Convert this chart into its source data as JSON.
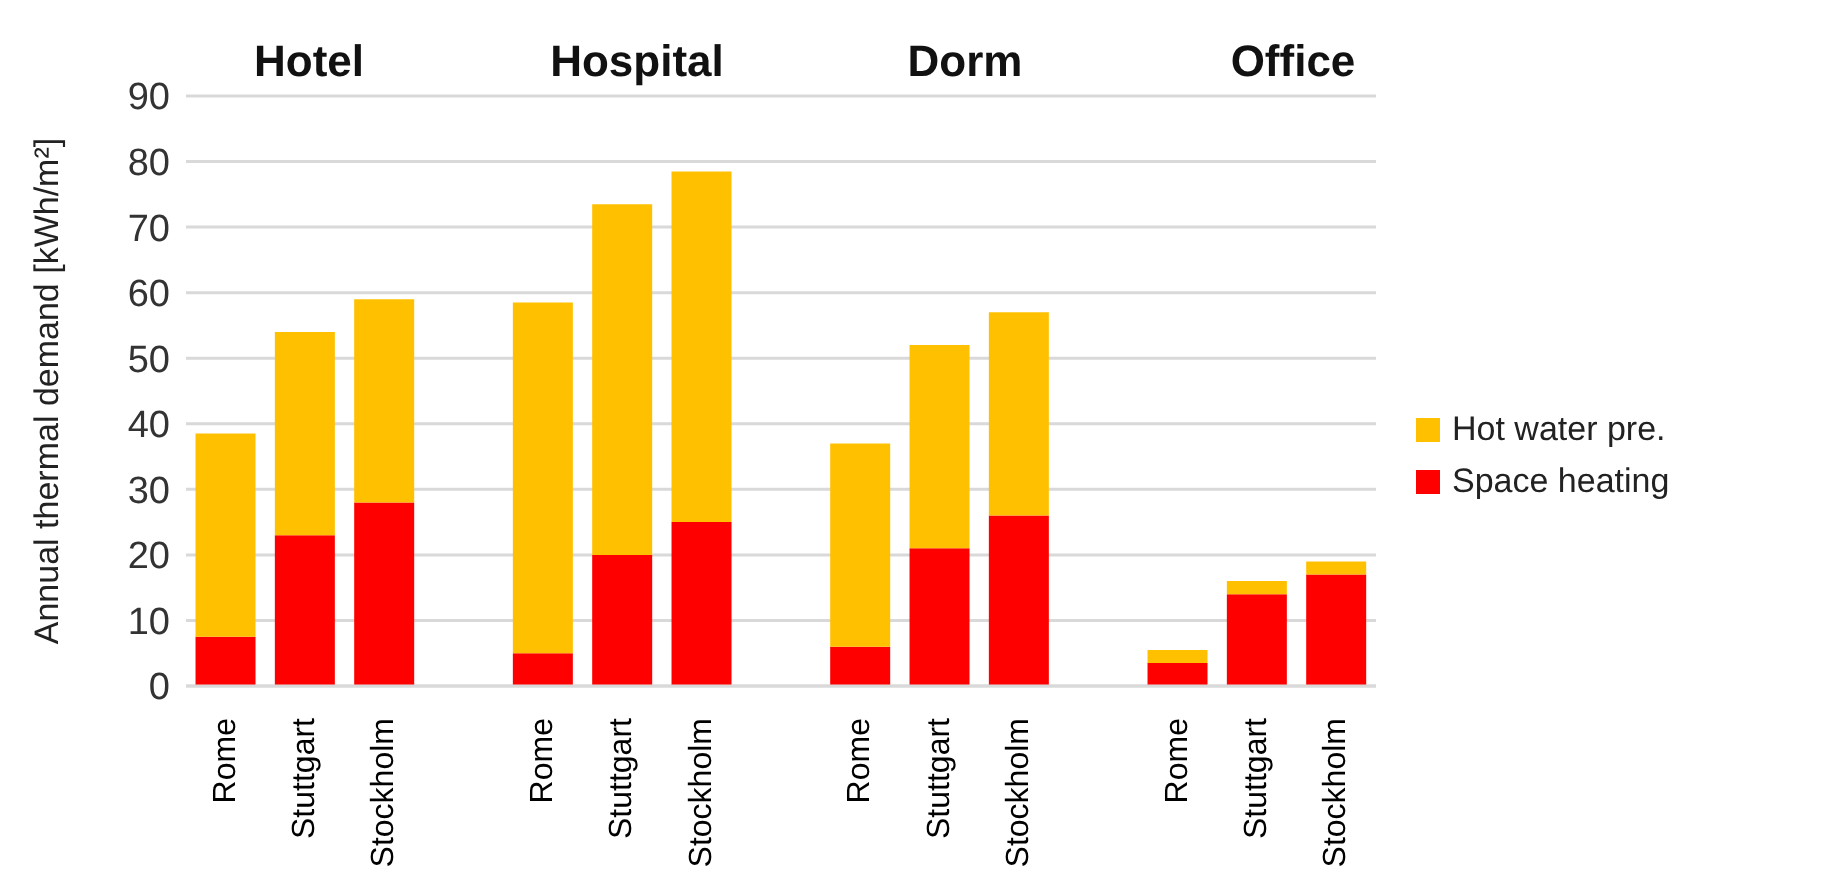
{
  "chart_data": {
    "type": "bar",
    "stacked": true,
    "ylabel": "Annual thermal demand [kWh/m²]",
    "categories": [
      "Rome",
      "Stuttgart",
      "Stockholm",
      null,
      "Rome",
      "Stuttgart",
      "Stockholm",
      null,
      "Rome",
      "Stuttgart",
      "Stockholm",
      null,
      "Rome",
      "Stuttgart",
      "Stockholm"
    ],
    "series": [
      {
        "name": "Space heating",
        "color": "#ff0000",
        "values": [
          7.5,
          23,
          28,
          null,
          5,
          20,
          25,
          null,
          6,
          21,
          26,
          null,
          3.5,
          14,
          17
        ]
      },
      {
        "name": "Hot water pre.",
        "color": "#ffc000",
        "values": [
          31,
          31,
          31,
          null,
          53.5,
          53.5,
          53.5,
          null,
          31,
          31,
          31,
          null,
          2,
          2,
          2
        ]
      }
    ],
    "annotations": [
      "Hotel",
      "Hospital",
      "Dorm",
      "Office"
    ],
    "ylim": [
      0,
      90
    ],
    "yticks": [
      0,
      10,
      20,
      30,
      40,
      50,
      60,
      70,
      80,
      90
    ],
    "grid": "y",
    "legend": "right"
  }
}
